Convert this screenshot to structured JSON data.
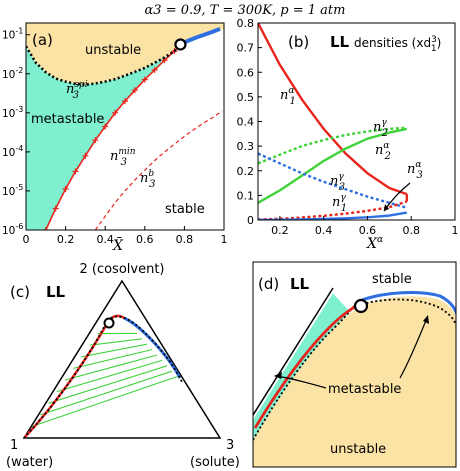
{
  "header": {
    "title": "α3 = 0.9,  T = 300K,  p = 1 atm"
  },
  "colors": {
    "unstable_fill": "#fbe2a5",
    "metastable_fill": "#7ef0d0",
    "red": "#e8241c",
    "blue": "#2f6fe0",
    "green": "#3fd23a",
    "black": "#000000"
  },
  "chart_data": [
    {
      "panel": "a",
      "type": "line",
      "panel_label": "(a)",
      "xlabel": "X̄",
      "ylabel": "",
      "xlim": [
        0,
        1
      ],
      "ylim_log10": [
        -6,
        -0.7
      ],
      "scale_y": "log",
      "x_ticks": [
        "0",
        "0.2",
        "0.4",
        "0.6",
        "0.8",
        "1"
      ],
      "y_ticks": [
        "10-6",
        "10-5",
        "10-4",
        "10-3",
        "10-2",
        "10-1"
      ],
      "region_labels": {
        "unstable": "unstable",
        "metastable": "metastable",
        "stable": "stable"
      },
      "curve_labels": {
        "spinodal": "n3spi",
        "minimum": "n3min",
        "binodal": "n3b"
      },
      "series": [
        {
          "name": "n3spi",
          "style": "dotted",
          "x": [
            0.0,
            0.05,
            0.1,
            0.15,
            0.2,
            0.25,
            0.3,
            0.35,
            0.4,
            0.45,
            0.5,
            0.55,
            0.6,
            0.65,
            0.7,
            0.75,
            0.78
          ],
          "log10_y": [
            -1.3,
            -1.72,
            -1.96,
            -2.12,
            -2.2,
            -2.26,
            -2.28,
            -2.25,
            -2.2,
            -2.14,
            -2.05,
            -1.95,
            -1.85,
            -1.72,
            -1.58,
            -1.42,
            -1.25
          ]
        },
        {
          "name": "n3min",
          "style": "solid-with-markers",
          "x": [
            0.1,
            0.15,
            0.2,
            0.25,
            0.3,
            0.35,
            0.4,
            0.45,
            0.5,
            0.55,
            0.6,
            0.65,
            0.7,
            0.75,
            0.78
          ],
          "log10_y": [
            -6.0,
            -5.45,
            -4.95,
            -4.5,
            -4.1,
            -3.7,
            -3.35,
            -3.0,
            -2.7,
            -2.42,
            -2.15,
            -1.9,
            -1.65,
            -1.42,
            -1.25
          ]
        },
        {
          "name": "n3b",
          "style": "dashed",
          "x": [
            0.35,
            0.4,
            0.45,
            0.5,
            0.55,
            0.6,
            0.65,
            0.7,
            0.75,
            0.8,
            0.85,
            0.9,
            0.95,
            0.99
          ],
          "log10_y": [
            -6.0,
            -5.65,
            -5.3,
            -5.0,
            -4.72,
            -4.47,
            -4.22,
            -4.0,
            -3.8,
            -3.6,
            -3.42,
            -3.25,
            -3.1,
            -2.95
          ]
        },
        {
          "name": "stable-branch",
          "style": "blue-thick",
          "x": [
            0.78,
            0.82,
            0.86,
            0.9,
            0.94,
            0.98
          ],
          "log10_y": [
            -1.25,
            -1.15,
            -1.07,
            -1.0,
            -0.93,
            -0.85
          ]
        }
      ],
      "critical_point": {
        "x": 0.78,
        "log10_y": -1.25
      }
    },
    {
      "panel": "b",
      "type": "line",
      "panel_label": "(b)",
      "title_main": "LL",
      "title_sub": "densities (xd13)",
      "xlabel": "Xα",
      "ylabel": "",
      "xlim": [
        0.1,
        1
      ],
      "ylim": [
        0,
        0.8
      ],
      "x_ticks": [
        "0.2",
        "0.4",
        "0.6",
        "0.8",
        "1"
      ],
      "y_ticks": [
        "0",
        "0.1",
        "0.2",
        "0.3",
        "0.4",
        "0.5",
        "0.6",
        "0.7",
        "0.8"
      ],
      "curve_labels": {
        "n1a": "n1α",
        "n2g": "n2γ",
        "n2a": "n2α",
        "n3g": "n3γ",
        "n3a": "n3α",
        "n1g": "n1γ"
      },
      "series": [
        {
          "name": "n1α",
          "color": "red",
          "style": "solid",
          "x": [
            0.1,
            0.2,
            0.3,
            0.4,
            0.5,
            0.6,
            0.7,
            0.78
          ],
          "y": [
            0.8,
            0.63,
            0.49,
            0.37,
            0.27,
            0.19,
            0.13,
            0.105
          ]
        },
        {
          "name": "n2α",
          "color": "green",
          "style": "solid",
          "x": [
            0.1,
            0.2,
            0.3,
            0.4,
            0.5,
            0.6,
            0.7,
            0.78
          ],
          "y": [
            0.07,
            0.12,
            0.18,
            0.24,
            0.29,
            0.33,
            0.355,
            0.37
          ]
        },
        {
          "name": "n2γ",
          "color": "green",
          "style": "dotted",
          "x": [
            0.1,
            0.2,
            0.3,
            0.4,
            0.5,
            0.6,
            0.7,
            0.78
          ],
          "y": [
            0.23,
            0.265,
            0.3,
            0.325,
            0.345,
            0.36,
            0.37,
            0.375
          ]
        },
        {
          "name": "n3γ",
          "color": "blue",
          "style": "dotted",
          "x": [
            0.1,
            0.2,
            0.3,
            0.4,
            0.5,
            0.6,
            0.7,
            0.78
          ],
          "y": [
            0.27,
            0.23,
            0.19,
            0.155,
            0.125,
            0.095,
            0.07,
            0.05
          ]
        },
        {
          "name": "n1γ",
          "color": "red",
          "style": "dotted",
          "x": [
            0.1,
            0.2,
            0.3,
            0.4,
            0.5,
            0.6,
            0.7,
            0.78
          ],
          "y": [
            0.002,
            0.005,
            0.01,
            0.017,
            0.026,
            0.037,
            0.052,
            0.075
          ]
        },
        {
          "name": "n3α",
          "color": "blue",
          "style": "solid",
          "x": [
            0.1,
            0.2,
            0.3,
            0.4,
            0.5,
            0.6,
            0.7,
            0.78
          ],
          "y": [
            0.0,
            0.001,
            0.002,
            0.004,
            0.007,
            0.011,
            0.018,
            0.03
          ]
        }
      ]
    },
    {
      "panel": "c",
      "type": "ternary",
      "panel_label": "(c)",
      "title_main": "LL",
      "vertex_labels": {
        "top": "2 (cosolvent)",
        "left_num": "1",
        "left_name": "(water)",
        "right_num": "3",
        "right_name": "(solute)"
      },
      "tie_line_count": 9
    },
    {
      "panel": "d",
      "type": "ternary-zoom",
      "panel_label": "(d)",
      "title_main": "LL",
      "region_labels": {
        "stable": "stable",
        "metastable": "metastable",
        "unstable": "unstable"
      }
    }
  ]
}
